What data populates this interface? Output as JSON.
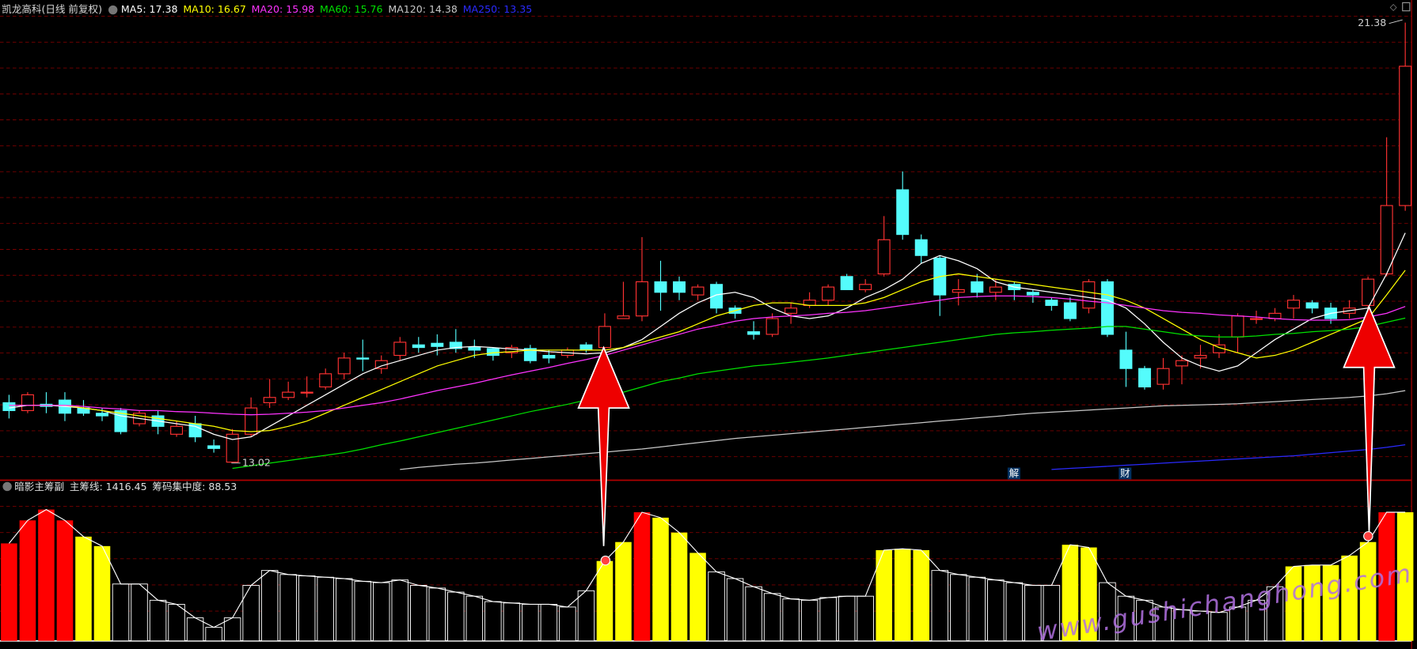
{
  "header": {
    "title": "凯龙高科(日线 前复权)"
  },
  "watermark": "www.gushichanghong.com",
  "chart_data": [
    {
      "type": "candlestick",
      "ylim": [
        12.71,
        21.81
      ],
      "up_color": "#ff3232",
      "down_color": "#54fcfc",
      "open": [
        14.15,
        14.0,
        14.12,
        14.2,
        14.05,
        13.95,
        14.0,
        13.75,
        13.9,
        13.55,
        13.75,
        13.33,
        13.02,
        13.55,
        14.15,
        14.25,
        14.35,
        14.45,
        14.7,
        15.0,
        14.8,
        15.05,
        15.25,
        15.28,
        15.3,
        15.2,
        15.18,
        15.1,
        15.18,
        15.05,
        15.05,
        15.25,
        15.2,
        15.75,
        15.8,
        16.45,
        16.45,
        16.2,
        16.4,
        15.95,
        15.5,
        15.45,
        15.85,
        16.0,
        16.1,
        16.55,
        16.3,
        16.6,
        18.2,
        17.25,
        16.9,
        16.25,
        16.45,
        16.25,
        16.4,
        16.25,
        16.1,
        16.05,
        15.95,
        16.45,
        15.15,
        14.8,
        14.5,
        14.85,
        15.0,
        15.1,
        15.4,
        15.75,
        15.75,
        15.95,
        16.05,
        15.95,
        15.85,
        16.0,
        16.6,
        17.9
      ],
      "close": [
        14.0,
        14.3,
        14.08,
        13.95,
        13.95,
        13.9,
        13.6,
        13.95,
        13.7,
        13.7,
        13.5,
        13.28,
        13.55,
        14.05,
        14.25,
        14.35,
        14.35,
        14.7,
        15.0,
        14.98,
        14.95,
        15.3,
        15.2,
        15.22,
        15.18,
        15.15,
        15.05,
        15.2,
        14.95,
        15.0,
        15.15,
        15.15,
        15.6,
        15.8,
        16.45,
        16.25,
        16.25,
        16.35,
        15.95,
        15.85,
        15.45,
        15.75,
        15.95,
        16.1,
        16.35,
        16.3,
        16.4,
        17.25,
        17.35,
        16.95,
        16.2,
        16.3,
        16.25,
        16.35,
        16.3,
        16.2,
        16.0,
        15.75,
        16.45,
        15.45,
        14.8,
        14.45,
        14.8,
        14.95,
        15.05,
        15.25,
        15.8,
        15.75,
        15.85,
        16.1,
        15.95,
        15.75,
        15.95,
        16.5,
        17.9,
        20.55
      ],
      "high": [
        14.3,
        14.35,
        14.35,
        14.35,
        14.2,
        14.05,
        14.05,
        14.0,
        14.0,
        13.8,
        13.9,
        13.45,
        13.65,
        14.25,
        14.6,
        14.55,
        14.65,
        14.8,
        15.1,
        15.35,
        15.05,
        15.4,
        15.4,
        15.45,
        15.55,
        15.35,
        15.2,
        15.25,
        15.25,
        15.15,
        15.2,
        15.3,
        15.85,
        16.45,
        17.3,
        16.85,
        16.55,
        16.4,
        16.45,
        16.0,
        15.7,
        15.85,
        16.05,
        16.25,
        16.4,
        16.6,
        16.5,
        17.7,
        18.55,
        17.35,
        16.95,
        16.5,
        16.6,
        16.5,
        16.45,
        16.3,
        16.15,
        16.15,
        16.5,
        16.5,
        15.5,
        14.85,
        15.0,
        15.05,
        15.25,
        15.45,
        15.85,
        15.9,
        15.95,
        16.2,
        16.1,
        16.05,
        16.1,
        16.55,
        19.2,
        21.38
      ],
      "low": [
        13.85,
        13.95,
        13.95,
        13.8,
        13.9,
        13.8,
        13.55,
        13.7,
        13.55,
        13.5,
        13.4,
        13.2,
        13.02,
        13.5,
        14.05,
        14.2,
        14.25,
        14.4,
        14.6,
        14.75,
        14.7,
        14.95,
        15.1,
        15.05,
        15.1,
        15.0,
        14.95,
        15.0,
        14.9,
        14.9,
        15.0,
        15.1,
        15.15,
        15.75,
        15.7,
        15.9,
        16.1,
        16.1,
        15.85,
        15.75,
        15.35,
        15.4,
        15.65,
        15.95,
        16.0,
        16.3,
        16.25,
        16.55,
        17.25,
        16.8,
        15.8,
        16.0,
        16.15,
        16.1,
        16.1,
        16.05,
        15.9,
        15.7,
        15.85,
        15.4,
        14.45,
        14.4,
        14.4,
        14.5,
        14.8,
        15.0,
        15.1,
        15.65,
        15.7,
        15.75,
        15.85,
        15.65,
        15.75,
        15.9,
        16.55,
        17.8
      ],
      "series": [
        {
          "name": "MA5: 17.38",
          "color": "#ffffff",
          "values": [
            14.05,
            14.1,
            14.1,
            14.08,
            14.05,
            14.0,
            13.9,
            13.85,
            13.8,
            13.75,
            13.7,
            13.55,
            13.45,
            13.5,
            13.7,
            13.9,
            14.1,
            14.3,
            14.5,
            14.7,
            14.85,
            14.95,
            15.05,
            15.15,
            15.2,
            15.22,
            15.2,
            15.17,
            15.15,
            15.12,
            15.1,
            15.08,
            15.1,
            15.2,
            15.35,
            15.6,
            15.85,
            16.05,
            16.2,
            16.25,
            16.15,
            15.95,
            15.8,
            15.75,
            15.8,
            15.95,
            16.15,
            16.3,
            16.5,
            16.8,
            16.95,
            16.85,
            16.7,
            16.45,
            16.35,
            16.3,
            16.25,
            16.2,
            16.15,
            16.1,
            15.95,
            15.65,
            15.3,
            15.0,
            14.85,
            14.75,
            14.85,
            15.1,
            15.35,
            15.55,
            15.75,
            15.85,
            15.9,
            15.95,
            16.6,
            17.38
          ]
        },
        {
          "name": "MA10: 16.67",
          "color": "#ffff00",
          "values": [
            14.1,
            14.1,
            14.1,
            14.1,
            14.05,
            14.0,
            13.95,
            13.9,
            13.85,
            13.8,
            13.75,
            13.7,
            13.62,
            13.6,
            13.62,
            13.7,
            13.8,
            13.95,
            14.1,
            14.25,
            14.4,
            14.55,
            14.7,
            14.85,
            14.95,
            15.05,
            15.1,
            15.12,
            15.15,
            15.15,
            15.15,
            15.15,
            15.15,
            15.2,
            15.3,
            15.4,
            15.5,
            15.65,
            15.8,
            15.9,
            16.0,
            16.05,
            16.05,
            16.0,
            16.0,
            16.0,
            16.05,
            16.15,
            16.3,
            16.45,
            16.55,
            16.6,
            16.55,
            16.5,
            16.45,
            16.4,
            16.35,
            16.3,
            16.25,
            16.2,
            16.1,
            15.95,
            15.75,
            15.55,
            15.35,
            15.2,
            15.1,
            15.0,
            15.05,
            15.15,
            15.3,
            15.45,
            15.6,
            15.75,
            16.2,
            16.67
          ]
        },
        {
          "name": "MA20: 15.98",
          "color": "#ff33ff",
          "values": [
            14.1,
            14.1,
            14.1,
            14.1,
            14.08,
            14.05,
            14.03,
            14.0,
            14.0,
            13.98,
            13.97,
            13.95,
            13.93,
            13.92,
            13.93,
            13.95,
            13.97,
            14.0,
            14.05,
            14.1,
            14.15,
            14.22,
            14.3,
            14.38,
            14.45,
            14.52,
            14.6,
            14.68,
            14.75,
            14.82,
            14.9,
            14.97,
            15.05,
            15.15,
            15.25,
            15.35,
            15.45,
            15.55,
            15.62,
            15.7,
            15.75,
            15.78,
            15.8,
            15.82,
            15.85,
            15.87,
            15.9,
            15.95,
            16.0,
            16.05,
            16.1,
            16.15,
            16.17,
            16.18,
            16.18,
            16.17,
            16.15,
            16.12,
            16.08,
            16.05,
            16.0,
            15.95,
            15.9,
            15.87,
            15.85,
            15.82,
            15.8,
            15.78,
            15.75,
            15.73,
            15.72,
            15.72,
            15.73,
            15.78,
            15.85,
            15.98
          ]
        },
        {
          "name": "MA60: 15.76",
          "color": "#00e000",
          "values": [
            null,
            null,
            null,
            null,
            null,
            null,
            null,
            null,
            null,
            null,
            null,
            null,
            12.9,
            12.95,
            13.0,
            13.05,
            13.1,
            13.15,
            13.2,
            13.27,
            13.35,
            13.42,
            13.5,
            13.58,
            13.66,
            13.74,
            13.82,
            13.9,
            13.98,
            14.05,
            14.12,
            14.2,
            14.27,
            14.35,
            14.45,
            14.55,
            14.62,
            14.7,
            14.75,
            14.8,
            14.85,
            14.88,
            14.92,
            14.96,
            15.0,
            15.05,
            15.1,
            15.15,
            15.2,
            15.25,
            15.3,
            15.35,
            15.4,
            15.45,
            15.48,
            15.5,
            15.53,
            15.55,
            15.57,
            15.6,
            15.6,
            15.55,
            15.5,
            15.45,
            15.42,
            15.4,
            15.4,
            15.42,
            15.45,
            15.47,
            15.5,
            15.52,
            15.55,
            15.6,
            15.68,
            15.76
          ]
        },
        {
          "name": "MA120: 14.38",
          "color": "#c8c8c8",
          "values": [
            null,
            null,
            null,
            null,
            null,
            null,
            null,
            null,
            null,
            null,
            null,
            null,
            null,
            null,
            null,
            null,
            null,
            null,
            null,
            null,
            null,
            12.88,
            12.92,
            12.95,
            12.98,
            13.0,
            13.03,
            13.06,
            13.09,
            13.12,
            13.15,
            13.18,
            13.21,
            13.24,
            13.27,
            13.31,
            13.35,
            13.39,
            13.43,
            13.47,
            13.5,
            13.53,
            13.56,
            13.59,
            13.62,
            13.65,
            13.68,
            13.71,
            13.74,
            13.77,
            13.8,
            13.83,
            13.86,
            13.89,
            13.92,
            13.95,
            13.97,
            13.99,
            14.01,
            14.03,
            14.05,
            14.07,
            14.09,
            14.1,
            14.11,
            14.12,
            14.13,
            14.15,
            14.17,
            14.19,
            14.21,
            14.23,
            14.25,
            14.28,
            14.32,
            14.38
          ]
        },
        {
          "name": "MA250: 13.35",
          "color": "#2a2aff",
          "values": [
            null,
            null,
            null,
            null,
            null,
            null,
            null,
            null,
            null,
            null,
            null,
            null,
            null,
            null,
            null,
            null,
            null,
            null,
            null,
            null,
            null,
            null,
            null,
            null,
            null,
            null,
            null,
            null,
            null,
            null,
            null,
            null,
            null,
            null,
            null,
            null,
            null,
            null,
            null,
            null,
            null,
            null,
            null,
            null,
            null,
            null,
            null,
            null,
            null,
            null,
            null,
            null,
            null,
            null,
            null,
            null,
            12.88,
            12.9,
            12.92,
            12.94,
            12.96,
            12.98,
            13.0,
            13.02,
            13.04,
            13.06,
            13.08,
            13.1,
            13.12,
            13.14,
            13.17,
            13.2,
            13.23,
            13.26,
            13.3,
            13.35
          ]
        }
      ],
      "event_markers": [
        "解",
        "财"
      ]
    },
    {
      "type": "bar",
      "title": "暗影主筹副",
      "indicator_labels": [
        "主筹线: 1416.45",
        "筹码集中度: 88.53"
      ],
      "ylim": [
        0,
        110
      ],
      "values": [
        72,
        89,
        97,
        89,
        77,
        70,
        42,
        42,
        30,
        27,
        17,
        10,
        17,
        41,
        52,
        49,
        48,
        47,
        46,
        44,
        43,
        45,
        41,
        39,
        36,
        33,
        29,
        28,
        27,
        27,
        25,
        37,
        59,
        73,
        95,
        91,
        80,
        65,
        51,
        46,
        40,
        35,
        31,
        30,
        32,
        33,
        33,
        67,
        68,
        67,
        52,
        49,
        47,
        45,
        43,
        41,
        41,
        71,
        69,
        43,
        33,
        30,
        25,
        23,
        22,
        21,
        25,
        30,
        40,
        55,
        56,
        56,
        63,
        73,
        95,
        95
      ],
      "colors": [
        "#ff0000",
        "#ff0000",
        "#ff0000",
        "#ff0000",
        "#ffff00",
        "#ffff00",
        "#000000",
        "#000000",
        "#000000",
        "#000000",
        "#000000",
        "#000000",
        "#000000",
        "#000000",
        "#000000",
        "#000000",
        "#000000",
        "#000000",
        "#000000",
        "#000000",
        "#000000",
        "#000000",
        "#000000",
        "#000000",
        "#000000",
        "#000000",
        "#000000",
        "#000000",
        "#000000",
        "#000000",
        "#000000",
        "#000000",
        "#ffff00",
        "#ffff00",
        "#ff0000",
        "#ffff00",
        "#ffff00",
        "#ffff00",
        "#000000",
        "#000000",
        "#000000",
        "#000000",
        "#000000",
        "#000000",
        "#000000",
        "#000000",
        "#000000",
        "#ffff00",
        "#ffff00",
        "#ffff00",
        "#000000",
        "#000000",
        "#000000",
        "#000000",
        "#000000",
        "#000000",
        "#000000",
        "#ffff00",
        "#ffff00",
        "#000000",
        "#000000",
        "#000000",
        "#000000",
        "#000000",
        "#000000",
        "#000000",
        "#000000",
        "#000000",
        "#000000",
        "#ffff00",
        "#ffff00",
        "#ffff00",
        "#ffff00",
        "#ffff00",
        "#ff0000",
        "#ffff00"
      ]
    }
  ]
}
